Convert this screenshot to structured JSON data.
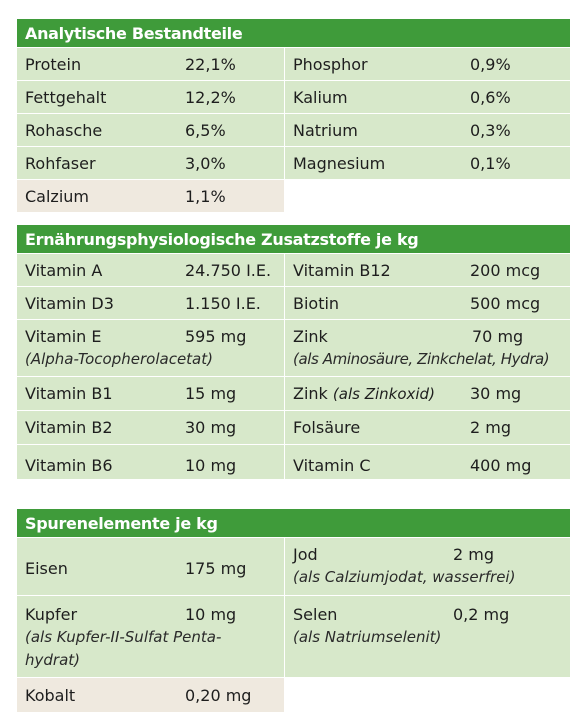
{
  "analytische": {
    "title": "Analytische Bestandteile",
    "rows": [
      {
        "n1": "Protein",
        "v1": "22,1%",
        "n2": "Phosphor",
        "v2": "0,9%"
      },
      {
        "n1": "Fettgehalt",
        "v1": "12,2%",
        "n2": "Kalium",
        "v2": "0,6%"
      },
      {
        "n1": "Rohasche",
        "v1": "6,5%",
        "n2": "Natrium",
        "v2": "0,3%"
      },
      {
        "n1": "Rohfaser",
        "v1": "3,0%",
        "n2": "Magnesium",
        "v2": "0,1%"
      },
      {
        "n1": "Calzium",
        "v1": "1,1%"
      }
    ]
  },
  "zusatzstoffe": {
    "title": "Ernährungsphysiologische Zusatzstoffe je kg",
    "rows": [
      {
        "n1": "Vitamin A",
        "v1": "24.750 I.E.",
        "n2": "Vitamin B12",
        "v2": "200 mcg"
      },
      {
        "n1": "Vitamin D3",
        "v1": "1.150 I.E.",
        "n2": "Biotin",
        "v2": "500 mcg"
      },
      {
        "n1": "Vitamin E",
        "v1": "595 mg",
        "note1": "(Alpha-Tocopherolacetat)",
        "n2": "Zink",
        "v2": "70 mg",
        "note2": "(als Aminosäure, Zinkchelat, Hydra)"
      },
      {
        "n1": "Vitamin B1",
        "v1": "15 mg",
        "n2": "Zink",
        "n2note": "(als Zinkoxid)",
        "v2": "30 mg"
      },
      {
        "n1": "Vitamin B2",
        "v1": "30 mg",
        "n2": "Folsäure",
        "v2": "2 mg"
      },
      {
        "n1": "Vitamin B6",
        "v1": "10 mg",
        "n2": "Vitamin C",
        "v2": "400 mg"
      }
    ]
  },
  "spuren": {
    "title": "Spurenelemente je kg",
    "rows": [
      {
        "n1": "Eisen",
        "v1": "175 mg",
        "n2": "Jod",
        "v2": "2 mg",
        "note2": "(als Calziumjodat, wasserfrei)"
      },
      {
        "n1": "Kupfer",
        "v1": "10 mg",
        "note1a": "(als Kupfer-II-Sulfat Penta-",
        "note1b": "hydrat)",
        "n2": "Selen",
        "v2": "0,2 mg",
        "note2": "(als Natriumselenit)"
      },
      {
        "n1": "Kobalt",
        "v1": "0,20 mg"
      }
    ]
  }
}
